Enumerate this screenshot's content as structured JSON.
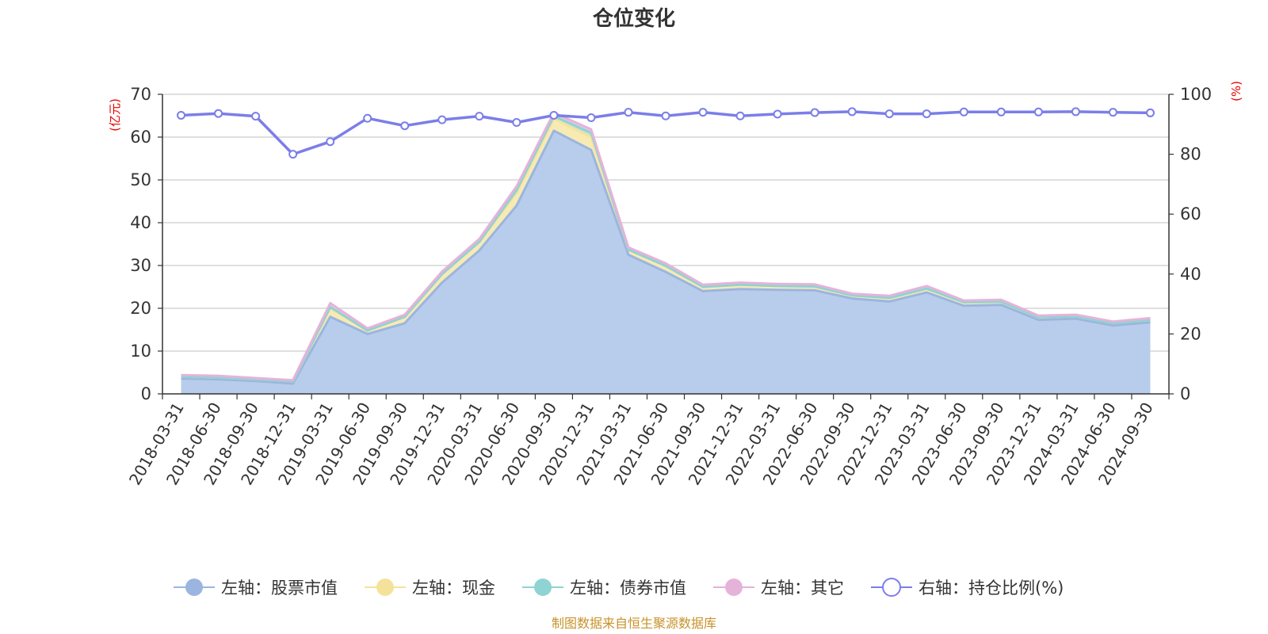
{
  "chart_data": {
    "type": "area",
    "title": "仓位变化",
    "left_axis_unit": "(亿元)",
    "right_axis_unit": "(%)",
    "left_ylim": [
      0,
      70
    ],
    "left_yticks": [
      "0",
      "10",
      "20",
      "30",
      "40",
      "50",
      "60",
      "70"
    ],
    "right_ylim": [
      0,
      100
    ],
    "right_yticks": [
      "0",
      "20",
      "40",
      "60",
      "80",
      "100"
    ],
    "grid": true,
    "stacked": true,
    "legend_position": "bottom",
    "x_labels": [
      "2018-03-31",
      "2018-06-30",
      "2018-09-30",
      "2018-12-31",
      "2019-03-31",
      "2019-06-30",
      "2019-09-30",
      "2019-12-31",
      "2020-03-31",
      "2020-06-30",
      "2020-09-30",
      "2020-12-31",
      "2021-03-31",
      "2021-06-30",
      "2021-09-30",
      "2021-12-31",
      "2022-03-31",
      "2022-06-30",
      "2022-09-30",
      "2022-12-31",
      "2023-03-31",
      "2023-06-30",
      "2023-09-30",
      "2023-12-31",
      "2024-03-31",
      "2024-06-30",
      "2024-09-30"
    ],
    "series": [
      {
        "name": "左轴：股票市值",
        "axis": "left",
        "kind": "area",
        "color": "#9bb5e0",
        "fill": "#b8cdeb",
        "values": [
          3.6,
          3.4,
          3.0,
          2.4,
          18.0,
          14.0,
          16.5,
          26.0,
          33.5,
          44.0,
          61.5,
          57.0,
          32.5,
          28.5,
          24.0,
          24.5,
          24.3,
          24.2,
          22.3,
          21.6,
          23.7,
          20.6,
          20.8,
          17.3,
          17.6,
          16.0,
          16.7
        ]
      },
      {
        "name": "左轴：现金",
        "axis": "left",
        "kind": "area",
        "color": "#f5e29a",
        "fill": "#f7eab3",
        "values": [
          0.4,
          0.4,
          0.4,
          0.5,
          2.0,
          0.8,
          1.5,
          2.0,
          2.0,
          3.0,
          2.8,
          3.0,
          1.2,
          1.4,
          1.0,
          1.0,
          0.9,
          0.9,
          0.7,
          0.8,
          0.9,
          0.8,
          0.7,
          0.6,
          0.5,
          0.5,
          0.6
        ]
      },
      {
        "name": "左轴：债券市值",
        "axis": "left",
        "kind": "area",
        "color": "#8fd3d3",
        "fill": "#b5e2e2",
        "values": [
          0.0,
          0.0,
          0.0,
          0.0,
          0.3,
          0.0,
          0.0,
          0.0,
          0.0,
          0.6,
          0.6,
          1.0,
          0.0,
          0.0,
          0.0,
          0.0,
          0.0,
          0.0,
          0.0,
          0.0,
          0.0,
          0.0,
          0.0,
          0.0,
          0.0,
          0.0,
          0.0
        ]
      },
      {
        "name": "左轴：其它",
        "axis": "left",
        "kind": "area",
        "color": "#e5b3da",
        "fill": "#edcbe6",
        "values": [
          0.4,
          0.4,
          0.3,
          0.3,
          0.9,
          0.5,
          0.5,
          0.6,
          0.7,
          0.9,
          0.8,
          0.8,
          0.5,
          0.6,
          0.5,
          0.5,
          0.5,
          0.5,
          0.4,
          0.5,
          0.6,
          0.4,
          0.5,
          0.4,
          0.4,
          0.4,
          0.4
        ]
      },
      {
        "name": "右轴：持仓比例(%)",
        "axis": "right",
        "kind": "line",
        "color": "#7b7ee8",
        "values": [
          93.0,
          93.6,
          92.7,
          80.0,
          84.2,
          92.0,
          89.5,
          91.5,
          92.7,
          90.6,
          93.0,
          92.2,
          94.0,
          92.8,
          94.0,
          92.8,
          93.4,
          93.9,
          94.2,
          93.5,
          93.5,
          94.1,
          94.1,
          94.1,
          94.2,
          94.0,
          93.8
        ]
      }
    ]
  },
  "footer": {
    "source_text": "制图数据来自恒生聚源数据库"
  }
}
